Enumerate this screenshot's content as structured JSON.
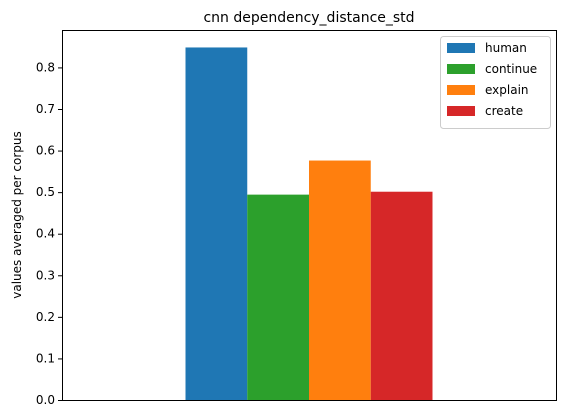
{
  "chart_data": {
    "type": "bar",
    "title": "cnn dependency_distance_std",
    "xlabel": "",
    "ylabel": "values averaged per corpus",
    "categories": [
      ""
    ],
    "series": [
      {
        "name": "human",
        "values": [
          0.848
        ],
        "color": "#1f77b4"
      },
      {
        "name": "continue",
        "values": [
          0.494
        ],
        "color": "#2ca02c"
      },
      {
        "name": "explain",
        "values": [
          0.576
        ],
        "color": "#ff7f0e"
      },
      {
        "name": "create",
        "values": [
          0.501
        ],
        "color": "#d62728"
      }
    ],
    "ylim": [
      0,
      0.89
    ],
    "yticks": [
      "0.0",
      "0.1",
      "0.2",
      "0.3",
      "0.4",
      "0.5",
      "0.6",
      "0.7",
      "0.8"
    ],
    "legend_position": "top-right",
    "grid": false
  }
}
